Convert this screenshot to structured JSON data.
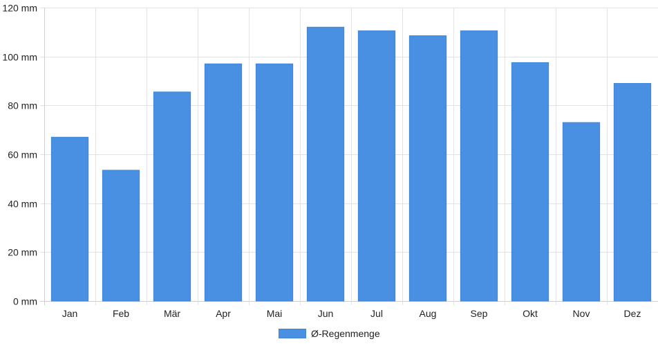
{
  "chart_data": {
    "type": "bar",
    "categories": [
      "Jan",
      "Feb",
      "Mär",
      "Apr",
      "Mai",
      "Jun",
      "Jul",
      "Aug",
      "Sep",
      "Okt",
      "Nov",
      "Dez"
    ],
    "series": [
      {
        "name": "Ø-Regenmenge",
        "values": [
          67,
          53.5,
          85.5,
          97,
          97,
          112,
          110.5,
          108.5,
          110.5,
          97.5,
          73,
          89
        ],
        "color": "#4a90e2"
      }
    ],
    "y_ticks": [
      "0 mm",
      "20 mm",
      "40 mm",
      "60 mm",
      "80 mm",
      "100 mm",
      "120 mm"
    ],
    "y_tick_values": [
      0,
      20,
      40,
      60,
      80,
      100,
      120
    ],
    "ylim": [
      0,
      120
    ],
    "unit": "mm",
    "grid": true,
    "legend_position": "bottom-center"
  }
}
